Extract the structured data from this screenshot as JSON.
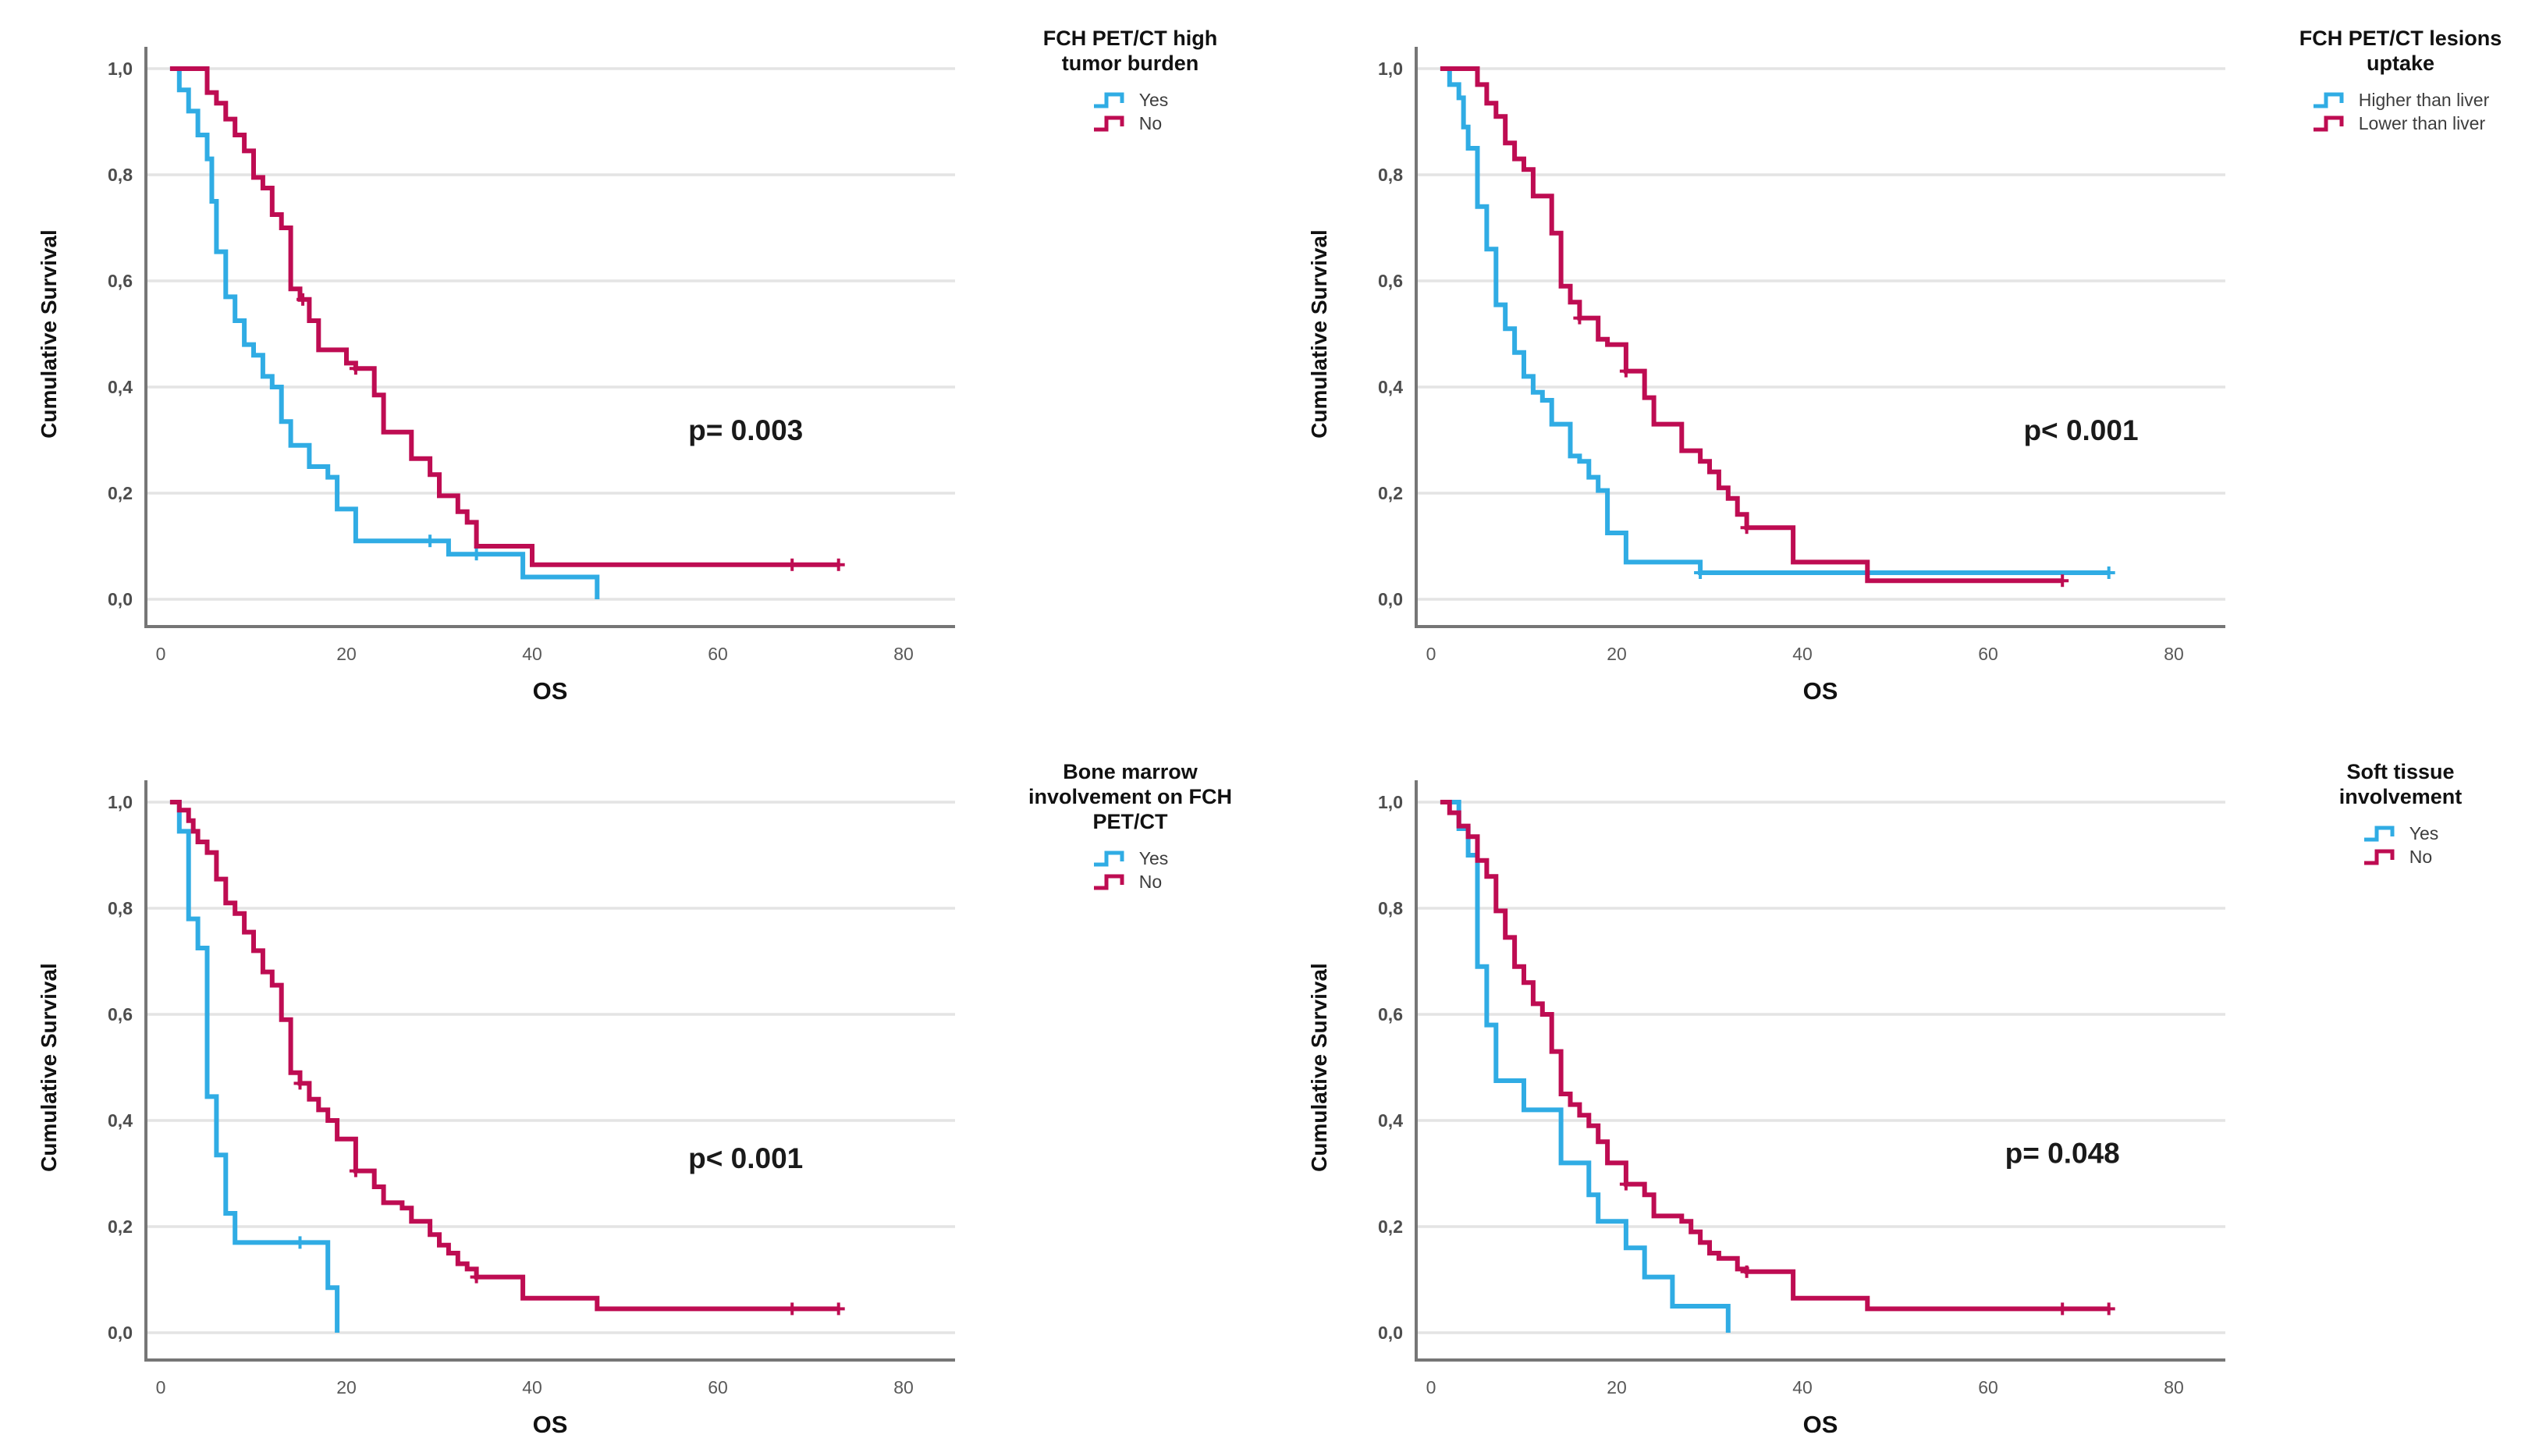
{
  "colors": {
    "blue": "#30ACE4",
    "crimson": "#BE0C52",
    "grid": "#e4e4e4",
    "axis": "#767676",
    "tick_text": "#595959",
    "y_tick_text": "#4d4d4d",
    "title_text": "#111111",
    "p_text": "#1a1a1a",
    "background": "#ffffff"
  },
  "axes": {
    "x_label": "OS",
    "y_label": "Cumulative Survival",
    "x_ticks": [
      0,
      20,
      40,
      60,
      80
    ],
    "y_ticks": [
      {
        "label": "1,0",
        "v": 1.0
      },
      {
        "label": "0,8",
        "v": 0.8
      },
      {
        "label": "0,6",
        "v": 0.6
      },
      {
        "label": "0,4",
        "v": 0.4
      },
      {
        "label": "0,2",
        "v": 0.2
      },
      {
        "label": "0,0",
        "v": 0.0
      }
    ],
    "x_range": [
      0,
      85
    ],
    "y_range": [
      0,
      1
    ]
  },
  "chart_data": [
    {
      "type": "line",
      "subtype": "kaplan-meier-step",
      "legend": {
        "title": "FCH PET/CT high\ntumor burden"
      },
      "p_value": {
        "text": "p= 0.003",
        "x": 63,
        "y": 0.3
      },
      "series": [
        {
          "name": "Yes",
          "color": "#30ACE4",
          "points": [
            [
              1,
              1.0
            ],
            [
              2,
              0.96
            ],
            [
              3,
              0.92
            ],
            [
              4,
              0.875
            ],
            [
              5,
              0.83
            ],
            [
              5.5,
              0.75
            ],
            [
              6,
              0.655
            ],
            [
              7,
              0.57
            ],
            [
              8,
              0.525
            ],
            [
              9,
              0.48
            ],
            [
              10,
              0.46
            ],
            [
              11,
              0.42
            ],
            [
              12,
              0.4
            ],
            [
              13,
              0.335
            ],
            [
              14,
              0.29
            ],
            [
              16,
              0.25
            ],
            [
              18,
              0.23
            ],
            [
              19,
              0.17
            ],
            [
              21,
              0.11
            ],
            [
              31,
              0.085
            ],
            [
              39,
              0.042
            ],
            [
              47,
              0.0
            ]
          ],
          "censors": [
            [
              29,
              0.11
            ],
            [
              34,
              0.085
            ]
          ]
        },
        {
          "name": "No",
          "color": "#BE0C52",
          "points": [
            [
              1,
              1.0
            ],
            [
              5,
              0.955
            ],
            [
              6,
              0.935
            ],
            [
              7,
              0.905
            ],
            [
              8,
              0.875
            ],
            [
              9,
              0.845
            ],
            [
              10,
              0.795
            ],
            [
              11,
              0.775
            ],
            [
              12,
              0.725
            ],
            [
              13,
              0.7
            ],
            [
              14,
              0.585
            ],
            [
              15,
              0.565
            ],
            [
              16,
              0.525
            ],
            [
              17,
              0.47
            ],
            [
              20,
              0.445
            ],
            [
              21,
              0.435
            ],
            [
              23,
              0.385
            ],
            [
              24,
              0.315
            ],
            [
              27,
              0.265
            ],
            [
              29,
              0.235
            ],
            [
              30,
              0.195
            ],
            [
              32,
              0.165
            ],
            [
              33,
              0.145
            ],
            [
              34,
              0.1
            ],
            [
              40,
              0.065
            ],
            [
              73,
              0.065
            ]
          ],
          "censors": [
            [
              15.3,
              0.565
            ],
            [
              21,
              0.435
            ],
            [
              68,
              0.065
            ],
            [
              73,
              0.065
            ]
          ]
        }
      ]
    },
    {
      "type": "line",
      "subtype": "kaplan-meier-step",
      "legend": {
        "title": "FCH PET/CT lesions\nuptake"
      },
      "p_value": {
        "text": "p< 0.001",
        "x": 70,
        "y": 0.3
      },
      "series": [
        {
          "name": "Higher than liver",
          "color": "#30ACE4",
          "points": [
            [
              1,
              1.0
            ],
            [
              2,
              0.97
            ],
            [
              3,
              0.945
            ],
            [
              3.5,
              0.89
            ],
            [
              4,
              0.85
            ],
            [
              5,
              0.74
            ],
            [
              6,
              0.66
            ],
            [
              7,
              0.555
            ],
            [
              8,
              0.51
            ],
            [
              9,
              0.465
            ],
            [
              10,
              0.42
            ],
            [
              11,
              0.39
            ],
            [
              12,
              0.375
            ],
            [
              13,
              0.33
            ],
            [
              15,
              0.27
            ],
            [
              16,
              0.26
            ],
            [
              17,
              0.23
            ],
            [
              18,
              0.205
            ],
            [
              19,
              0.125
            ],
            [
              21,
              0.07
            ],
            [
              29,
              0.05
            ],
            [
              73,
              0.05
            ]
          ],
          "censors": [
            [
              29,
              0.05
            ],
            [
              73,
              0.05
            ]
          ]
        },
        {
          "name": "Lower than liver",
          "color": "#BE0C52",
          "points": [
            [
              1,
              1.0
            ],
            [
              5,
              0.97
            ],
            [
              6,
              0.935
            ],
            [
              7,
              0.91
            ],
            [
              8,
              0.86
            ],
            [
              9,
              0.83
            ],
            [
              10,
              0.81
            ],
            [
              11,
              0.76
            ],
            [
              13,
              0.69
            ],
            [
              14,
              0.59
            ],
            [
              15,
              0.56
            ],
            [
              16,
              0.53
            ],
            [
              18,
              0.49
            ],
            [
              19,
              0.48
            ],
            [
              21,
              0.43
            ],
            [
              23,
              0.38
            ],
            [
              24,
              0.33
            ],
            [
              27,
              0.28
            ],
            [
              29,
              0.26
            ],
            [
              30,
              0.24
            ],
            [
              31,
              0.21
            ],
            [
              32,
              0.19
            ],
            [
              33,
              0.16
            ],
            [
              34,
              0.135
            ],
            [
              39,
              0.07
            ],
            [
              47,
              0.035
            ],
            [
              68,
              0.035
            ]
          ],
          "censors": [
            [
              16,
              0.53
            ],
            [
              21,
              0.43
            ],
            [
              34,
              0.135
            ],
            [
              68,
              0.035
            ]
          ]
        }
      ]
    },
    {
      "type": "line",
      "subtype": "kaplan-meier-step",
      "legend": {
        "title": "Bone marrow\ninvolvement on FCH\nPET/CT"
      },
      "p_value": {
        "text": "p< 0.001",
        "x": 63,
        "y": 0.31
      },
      "series": [
        {
          "name": "Yes",
          "color": "#30ACE4",
          "points": [
            [
              1,
              1.0
            ],
            [
              2,
              0.945
            ],
            [
              3,
              0.78
            ],
            [
              4,
              0.725
            ],
            [
              5,
              0.445
            ],
            [
              6,
              0.335
            ],
            [
              7,
              0.225
            ],
            [
              8,
              0.17
            ],
            [
              18,
              0.085
            ],
            [
              19,
              0.0
            ]
          ],
          "censors": [
            [
              15,
              0.17
            ]
          ]
        },
        {
          "name": "No",
          "color": "#BE0C52",
          "points": [
            [
              1,
              1.0
            ],
            [
              2,
              0.985
            ],
            [
              3,
              0.965
            ],
            [
              3.5,
              0.945
            ],
            [
              4,
              0.925
            ],
            [
              5,
              0.905
            ],
            [
              6,
              0.855
            ],
            [
              7,
              0.81
            ],
            [
              8,
              0.79
            ],
            [
              9,
              0.755
            ],
            [
              10,
              0.72
            ],
            [
              11,
              0.68
            ],
            [
              12,
              0.655
            ],
            [
              13,
              0.59
            ],
            [
              14,
              0.49
            ],
            [
              15,
              0.47
            ],
            [
              16,
              0.44
            ],
            [
              17,
              0.42
            ],
            [
              18,
              0.4
            ],
            [
              19,
              0.365
            ],
            [
              21,
              0.305
            ],
            [
              23,
              0.275
            ],
            [
              24,
              0.245
            ],
            [
              26,
              0.235
            ],
            [
              27,
              0.21
            ],
            [
              29,
              0.185
            ],
            [
              30,
              0.165
            ],
            [
              31,
              0.15
            ],
            [
              32,
              0.13
            ],
            [
              33,
              0.12
            ],
            [
              34,
              0.105
            ],
            [
              39,
              0.065
            ],
            [
              47,
              0.045
            ],
            [
              73,
              0.045
            ]
          ],
          "censors": [
            [
              15,
              0.47
            ],
            [
              21,
              0.305
            ],
            [
              34,
              0.105
            ],
            [
              68,
              0.045
            ],
            [
              73,
              0.045
            ]
          ]
        }
      ]
    },
    {
      "type": "line",
      "subtype": "kaplan-meier-step",
      "legend": {
        "title": "Soft tissue\ninvolvement"
      },
      "p_value": {
        "text": "p= 0.048",
        "x": 68,
        "y": 0.32
      },
      "series": [
        {
          "name": "Yes",
          "color": "#30ACE4",
          "points": [
            [
              1,
              1.0
            ],
            [
              3,
              0.95
            ],
            [
              4,
              0.9
            ],
            [
              5,
              0.69
            ],
            [
              6,
              0.58
            ],
            [
              7,
              0.475
            ],
            [
              10,
              0.42
            ],
            [
              14,
              0.32
            ],
            [
              17,
              0.26
            ],
            [
              18,
              0.21
            ],
            [
              21,
              0.16
            ],
            [
              23,
              0.105
            ],
            [
              26,
              0.05
            ],
            [
              32,
              0.0
            ]
          ],
          "censors": []
        },
        {
          "name": "No",
          "color": "#BE0C52",
          "points": [
            [
              1,
              1.0
            ],
            [
              2,
              0.98
            ],
            [
              3,
              0.955
            ],
            [
              4,
              0.935
            ],
            [
              5,
              0.89
            ],
            [
              6,
              0.86
            ],
            [
              7,
              0.795
            ],
            [
              8,
              0.745
            ],
            [
              9,
              0.69
            ],
            [
              10,
              0.66
            ],
            [
              11,
              0.62
            ],
            [
              12,
              0.6
            ],
            [
              13,
              0.53
            ],
            [
              14,
              0.45
            ],
            [
              15,
              0.43
            ],
            [
              16,
              0.41
            ],
            [
              17,
              0.39
            ],
            [
              18,
              0.36
            ],
            [
              19,
              0.32
            ],
            [
              21,
              0.28
            ],
            [
              23,
              0.26
            ],
            [
              24,
              0.22
            ],
            [
              27,
              0.21
            ],
            [
              28,
              0.19
            ],
            [
              29,
              0.17
            ],
            [
              30,
              0.15
            ],
            [
              31,
              0.14
            ],
            [
              33,
              0.12
            ],
            [
              34,
              0.115
            ],
            [
              39,
              0.065
            ],
            [
              47,
              0.045
            ],
            [
              73,
              0.045
            ]
          ],
          "censors": [
            [
              21,
              0.28
            ],
            [
              34,
              0.115
            ],
            [
              68,
              0.045
            ],
            [
              73,
              0.045
            ]
          ]
        }
      ]
    }
  ]
}
